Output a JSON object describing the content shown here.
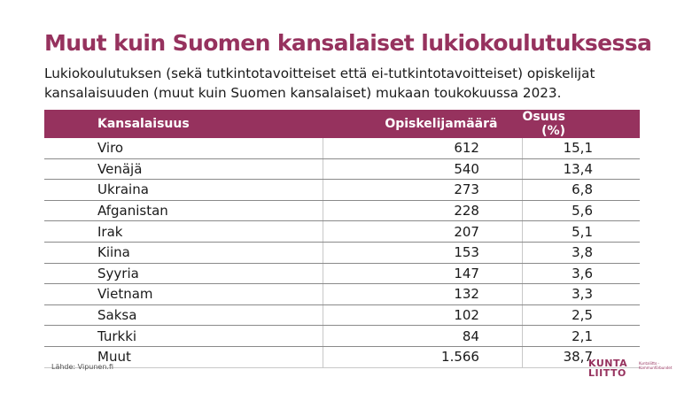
{
  "title": "Muut kuin Suomen kansalaiset lukiokoulutuksessa",
  "subtitle": "Lukiokoulutuksen (sekä tutkintotavoitteiset että ei-tutkintotavoitteiset) opiskelijat kansalaisuuden (muut kuin Suomen kansalaiset) mukaan toukokuussa 2023.",
  "table": {
    "headers": [
      "Kansalaisuus",
      "Opiskelijamäärä",
      "Osuus (%)"
    ],
    "rows": [
      [
        "Viro",
        "612",
        "15,1"
      ],
      [
        "Venäjä",
        "540",
        "13,4"
      ],
      [
        "Ukraina",
        "273",
        "6,8"
      ],
      [
        "Afganistan",
        "228",
        "5,6"
      ],
      [
        "Irak",
        "207",
        "5,1"
      ],
      [
        "Kiina",
        "153",
        "3,8"
      ],
      [
        "Syyria",
        "147",
        "3,6"
      ],
      [
        "Vietnam",
        "132",
        "3,3"
      ],
      [
        "Saksa",
        "102",
        "2,5"
      ],
      [
        "Turkki",
        "84",
        "2,1"
      ],
      [
        "Muut",
        "1.566",
        "38,7"
      ]
    ]
  },
  "source": "Lähde: Vipunen.fi",
  "logo": {
    "line1": "KUNTA",
    "line2": "LIITTO",
    "side": "Kuntaliitto - Kommunförbundet"
  },
  "colors": {
    "accent": "#96325e"
  }
}
